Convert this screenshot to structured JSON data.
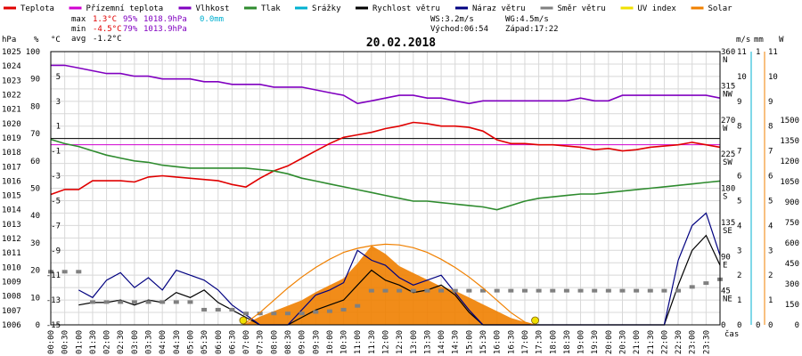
{
  "chart_data": {
    "type": "line",
    "title": "20.02.2018",
    "xlabel": "čas",
    "legend": {
      "placement": "top",
      "items": [
        {
          "name": "Teplota",
          "color": "#e00000"
        },
        {
          "name": "Přízemní teplota",
          "color": "#d000d0"
        },
        {
          "name": "Vlhkost",
          "color": "#8000c0"
        },
        {
          "name": "Tlak",
          "color": "#2e8b2e"
        },
        {
          "name": "Srážky",
          "color": "#00b0d0"
        },
        {
          "name": "Rychlost větru",
          "color": "#000000"
        },
        {
          "name": "Náraz větru",
          "color": "#000080"
        },
        {
          "name": "Směr větru",
          "color": "#808080"
        },
        {
          "name": "UV index",
          "color": "#f0e000"
        },
        {
          "name": "Solar",
          "color": "#f08000"
        }
      ]
    },
    "stats": [
      {
        "label": "max",
        "values": [
          {
            "text": "1.3°C",
            "color": "#e00000"
          },
          {
            "text": "95%",
            "color": "#8000c0"
          },
          {
            "text": "1018.9hPa",
            "color": "#8000c0"
          },
          {
            "text": "0.0mm",
            "color": "#00b0d0"
          }
        ]
      },
      {
        "label": "min",
        "values": [
          {
            "text": "-4.5°C",
            "color": "#e00000"
          },
          {
            "text": "79%",
            "color": "#8000c0"
          },
          {
            "text": "1013.9hPa",
            "color": "#8000c0"
          }
        ]
      },
      {
        "label": "avg",
        "values": [
          {
            "text": "-1.2°C",
            "color": "#000000"
          }
        ]
      }
    ],
    "info": {
      "ws": "WS:3.2m/s",
      "wg": "WG:4.5m/s",
      "sunrise": "Východ:06:54",
      "sunset": "Západ:17:22"
    },
    "axes": {
      "hpa": {
        "unit": "hPa",
        "range": [
          1006,
          1025
        ],
        "ticks": [
          "1025",
          "1024",
          "1023",
          "1022",
          "1021",
          "1020",
          "1019",
          "1018",
          "1017",
          "1016",
          "1015",
          "1014",
          "1013",
          "1012",
          "1011",
          "1010",
          "1009",
          "1008",
          "1007",
          "1006"
        ]
      },
      "pct": {
        "unit": "%",
        "range": [
          0,
          100
        ],
        "ticks": [
          "100",
          "90",
          "80",
          "70",
          "60",
          "50",
          "40",
          "30",
          "20",
          "10",
          "0"
        ]
      },
      "temp": {
        "unit": "°C",
        "range": [
          -15,
          7
        ],
        "ticks": [
          "5",
          "3",
          "1",
          "-1",
          "-3",
          "-5",
          "-7",
          "-9",
          "-11",
          "-13",
          "-15"
        ]
      },
      "dir": {
        "ticks": [
          "360",
          "315",
          "270",
          "225",
          "180",
          "135",
          "90",
          "45",
          "0"
        ],
        "compass": [
          "N",
          "NW",
          "W",
          "SW",
          "S",
          "SE",
          "E",
          "NE"
        ]
      },
      "ms": {
        "unit": "m/s",
        "range": [
          0,
          11
        ],
        "ticks": [
          "11",
          "10",
          "9",
          "8",
          "7",
          "6",
          "5",
          "4",
          "3",
          "2",
          "1",
          "0"
        ]
      },
      "mm": {
        "unit": "mm",
        "range": [
          0,
          1
        ],
        "ticks": [
          "1",
          "0"
        ]
      },
      "uv": {
        "unit": "UV",
        "range": [
          0,
          11
        ],
        "ticks": [
          "11",
          "10",
          "9",
          "8",
          "7",
          "6",
          "5",
          "4",
          "3",
          "2",
          "1",
          "0"
        ]
      },
      "solar": {
        "unit": "W",
        "range": [
          0,
          2000
        ],
        "ticks": [
          "1500",
          "1350",
          "1200",
          "1050",
          "900",
          "750",
          "600",
          "450",
          "300",
          "150",
          "0"
        ]
      }
    },
    "x_ticks": [
      "00:00",
      "00:30",
      "01:00",
      "01:30",
      "02:00",
      "02:30",
      "03:00",
      "03:30",
      "04:00",
      "04:30",
      "05:00",
      "05:30",
      "06:00",
      "06:30",
      "07:00",
      "07:30",
      "08:00",
      "08:30",
      "09:00",
      "09:30",
      "10:00",
      "10:30",
      "11:00",
      "11:30",
      "12:00",
      "12:30",
      "13:00",
      "13:30",
      "14:00",
      "14:30",
      "15:00",
      "15:30",
      "16:00",
      "16:30",
      "17:00",
      "17:30",
      "18:00",
      "18:30",
      "19:00",
      "19:30",
      "20:00",
      "20:30",
      "21:00",
      "21:30",
      "22:00",
      "22:30",
      "23:00",
      "23:30"
    ],
    "ground_temp_ref": -0.5,
    "series": [
      {
        "key": "temp",
        "axis": "temp",
        "color": "#e00000",
        "x": [
          0,
          0.5,
          1,
          1.5,
          2,
          2.5,
          3,
          3.5,
          4,
          4.5,
          5,
          5.5,
          6,
          6.5,
          7,
          7.5,
          8,
          8.5,
          9,
          9.5,
          10,
          10.5,
          11,
          11.5,
          12,
          12.5,
          13,
          13.5,
          14,
          14.5,
          15,
          15.5,
          16,
          16.5,
          17,
          17.5,
          18,
          18.5,
          19,
          19.5,
          20,
          20.5,
          21,
          21.5,
          22,
          22.5,
          23,
          23.5,
          24
        ],
        "y": [
          -4.5,
          -4.1,
          -4.1,
          -3.4,
          -3.4,
          -3.4,
          -3.5,
          -3.1,
          -3.0,
          -3.1,
          -3.2,
          -3.3,
          -3.4,
          -3.7,
          -3.9,
          -3.2,
          -2.6,
          -2.2,
          -1.6,
          -1.0,
          -0.4,
          0.1,
          0.3,
          0.5,
          0.8,
          1.0,
          1.3,
          1.2,
          1.0,
          1.0,
          0.9,
          0.6,
          -0.1,
          -0.4,
          -0.4,
          -0.5,
          -0.5,
          -0.6,
          -0.7,
          -0.9,
          -0.8,
          -1.0,
          -0.9,
          -0.7,
          -0.6,
          -0.5,
          -0.3,
          -0.5,
          -0.7
        ]
      },
      {
        "key": "humidity",
        "axis": "pct",
        "color": "#8000c0",
        "x": [
          0,
          0.5,
          1,
          1.5,
          2,
          2.5,
          3,
          3.5,
          4,
          4.5,
          5,
          5.5,
          6,
          6.5,
          7,
          7.5,
          8,
          8.5,
          9,
          9.5,
          10,
          10.5,
          11,
          11.5,
          12,
          12.5,
          13,
          13.5,
          14,
          14.5,
          15,
          15.5,
          16,
          16.5,
          17,
          17.5,
          18,
          18.5,
          19,
          19.5,
          20,
          20.5,
          21,
          21.5,
          22,
          22.5,
          23,
          23.5,
          24
        ],
        "y": [
          95,
          95,
          94,
          93,
          92,
          92,
          91,
          91,
          90,
          90,
          90,
          89,
          89,
          88,
          88,
          88,
          87,
          87,
          87,
          86,
          85,
          84,
          81,
          82,
          83,
          84,
          84,
          83,
          83,
          82,
          81,
          82,
          82,
          82,
          82,
          82,
          82,
          82,
          83,
          82,
          82,
          84,
          84,
          84,
          84,
          84,
          84,
          84,
          83
        ]
      },
      {
        "key": "pressure",
        "axis": "hpa",
        "color": "#2e8b2e",
        "x": [
          0,
          0.5,
          1,
          1.5,
          2,
          2.5,
          3,
          3.5,
          4,
          4.5,
          5,
          5.5,
          6,
          6.5,
          7,
          7.5,
          8,
          8.5,
          9,
          9.5,
          10,
          10.5,
          11,
          11.5,
          12,
          12.5,
          13,
          13.5,
          14,
          14.5,
          15,
          15.5,
          16,
          16.5,
          17,
          17.5,
          18,
          18.5,
          19,
          19.5,
          20,
          20.5,
          21,
          21.5,
          22,
          22.5,
          23,
          23.5,
          24
        ],
        "y": [
          1018.9,
          1018.6,
          1018.4,
          1018.1,
          1017.8,
          1017.6,
          1017.4,
          1017.3,
          1017.1,
          1017.0,
          1016.9,
          1016.9,
          1016.9,
          1016.9,
          1016.9,
          1016.8,
          1016.7,
          1016.5,
          1016.2,
          1016.0,
          1015.8,
          1015.6,
          1015.4,
          1015.2,
          1015.0,
          1014.8,
          1014.6,
          1014.6,
          1014.5,
          1014.4,
          1014.3,
          1014.2,
          1014.0,
          1014.3,
          1014.6,
          1014.8,
          1014.9,
          1015.0,
          1015.1,
          1015.1,
          1015.2,
          1015.3,
          1015.4,
          1015.5,
          1015.6,
          1015.7,
          1015.8,
          1015.9,
          1016.0
        ]
      },
      {
        "key": "wind_speed",
        "axis": "ms",
        "color": "#000000",
        "x": [
          1.0,
          1.5,
          2.0,
          2.5,
          3.0,
          3.5,
          4.0,
          4.5,
          5.0,
          5.5,
          6.0,
          6.5,
          7.0,
          7.5,
          8.0,
          8.5,
          9.0,
          9.5,
          10.0,
          10.5,
          11.0,
          11.5,
          12.0,
          12.5,
          13.0,
          13.5,
          14.0,
          14.5,
          15.0,
          15.5,
          16.0,
          22.0,
          22.5,
          23.0,
          23.5,
          24.0
        ],
        "y": [
          0.8,
          0.9,
          0.9,
          1.0,
          0.8,
          1.0,
          0.9,
          1.3,
          1.1,
          1.4,
          0.9,
          0.6,
          0.3,
          0.0,
          0.0,
          0.0,
          0.3,
          0.6,
          0.8,
          1.0,
          1.6,
          2.2,
          1.8,
          1.6,
          1.3,
          1.4,
          1.6,
          1.2,
          0.5,
          0.0,
          0.0,
          0.0,
          1.6,
          3.0,
          3.6,
          2.4
        ]
      },
      {
        "key": "wind_gust",
        "axis": "ms",
        "color": "#000080",
        "x": [
          1.0,
          1.5,
          2.0,
          2.5,
          3.0,
          3.5,
          4.0,
          4.5,
          5.0,
          5.5,
          6.0,
          6.5,
          7.0,
          7.5,
          8.0,
          8.5,
          9.0,
          9.5,
          10.0,
          10.5,
          11.0,
          11.5,
          12.0,
          12.5,
          13.0,
          13.5,
          14.0,
          14.5,
          15.0,
          15.5,
          16.0,
          22.0,
          22.5,
          23.0,
          23.5,
          24.0
        ],
        "y": [
          1.4,
          1.1,
          1.8,
          2.1,
          1.5,
          1.9,
          1.4,
          2.2,
          2.0,
          1.8,
          1.4,
          0.8,
          0.4,
          0.0,
          0.0,
          0.0,
          0.6,
          1.2,
          1.4,
          1.7,
          3.0,
          2.6,
          2.4,
          1.9,
          1.6,
          1.8,
          2.0,
          1.3,
          0.6,
          0.0,
          0.0,
          0.0,
          2.6,
          4.0,
          4.5,
          2.8
        ]
      },
      {
        "key": "wind_dir",
        "axis": "dir",
        "color": "#808080",
        "x": [
          0,
          0.5,
          1.0,
          1.5,
          2.0,
          2.5,
          3.0,
          3.5,
          4.0,
          4.5,
          5.0,
          5.5,
          6.0,
          6.5,
          7.0,
          7.5,
          8.0,
          8.5,
          9.0,
          9.5,
          10.0,
          10.5,
          11.0,
          11.5,
          12.0,
          12.5,
          13.0,
          13.5,
          14.0,
          14.5,
          15.0,
          15.5,
          16.0,
          16.5,
          17.0,
          17.5,
          18.0,
          18.5,
          19.0,
          19.5,
          20.0,
          20.5,
          21.0,
          21.5,
          22.0,
          22.5,
          23.0,
          23.5,
          24.0
        ],
        "y": [
          70,
          70,
          70,
          30,
          30,
          30,
          30,
          30,
          30,
          30,
          30,
          20,
          20,
          20,
          15,
          15,
          15,
          15,
          15,
          17,
          18,
          20,
          25,
          45,
          45,
          45,
          45,
          45,
          45,
          45,
          45,
          45,
          45,
          45,
          45,
          45,
          45,
          45,
          45,
          45,
          45,
          45,
          45,
          45,
          45,
          45,
          50,
          55,
          60
        ]
      },
      {
        "key": "solar",
        "axis": "solar",
        "color": "#f08000",
        "fill": true,
        "x": [
          6.9,
          7.5,
          8.0,
          8.5,
          9.0,
          9.5,
          10.0,
          10.5,
          11.0,
          11.5,
          12.0,
          12.5,
          13.0,
          13.5,
          14.0,
          14.5,
          15.0,
          15.5,
          16.0,
          16.5,
          17.0,
          17.35
        ],
        "y": [
          0,
          60,
          100,
          140,
          180,
          240,
          290,
          340,
          450,
          580,
          520,
          430,
          380,
          330,
          280,
          250,
          200,
          150,
          100,
          50,
          20,
          0
        ]
      },
      {
        "key": "solar_theoretical",
        "axis": "solar",
        "color": "#f08000",
        "fill": false,
        "x": [
          6.9,
          7.5,
          8.0,
          8.5,
          9.0,
          9.5,
          10.0,
          10.5,
          11.0,
          11.5,
          12.0,
          12.5,
          13.0,
          13.5,
          14.0,
          14.5,
          15.0,
          15.5,
          16.0,
          16.5,
          17.0,
          17.35
        ],
        "y": [
          0,
          90,
          180,
          270,
          350,
          420,
          480,
          530,
          560,
          580,
          590,
          585,
          565,
          530,
          480,
          420,
          350,
          270,
          180,
          90,
          20,
          0
        ]
      }
    ],
    "markers": [
      {
        "label": "sunrise",
        "hour": 6.9,
        "color": "#f0e000"
      },
      {
        "label": "sunset",
        "hour": 17.37,
        "color": "#f0e000"
      }
    ]
  }
}
